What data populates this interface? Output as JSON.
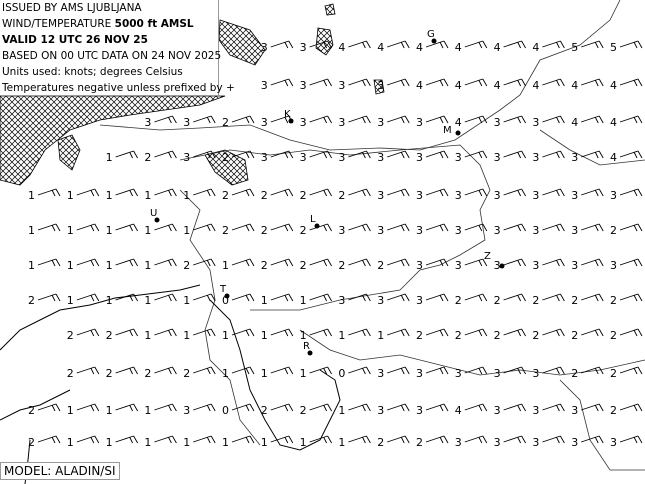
{
  "header": {
    "line1": "ISSUED BY AMS LJUBLJANA",
    "line2_prefix": "WIND/TEMPERATURE ",
    "line2_level": "5000 ft AMSL",
    "valid": "VALID 12 UTC 26 NOV 25",
    "based_on": "BASED ON 00 UTC DATA ON 24 NOV 2025",
    "units": "Units used: knots; degrees Celsius",
    "note": "Temperatures negative unless prefixed by +"
  },
  "model": "MODEL: ALADIN/SI",
  "stations": [
    {
      "label": "G"
    },
    {
      "label": "K"
    },
    {
      "label": "M"
    },
    {
      "label": "U"
    },
    {
      "label": "L"
    },
    {
      "label": "Z"
    },
    {
      "label": "T"
    },
    {
      "label": "R"
    }
  ],
  "temperature_rows": [
    [
      null,
      null,
      null,
      null,
      null,
      null,
      3,
      3,
      4,
      4,
      4,
      4,
      4,
      4,
      5,
      5
    ],
    [
      null,
      null,
      null,
      null,
      null,
      null,
      3,
      3,
      3,
      3,
      4,
      4,
      4,
      4,
      4,
      4
    ],
    [
      null,
      null,
      null,
      3,
      3,
      2,
      3,
      3,
      3,
      3,
      3,
      4,
      3,
      3,
      4,
      4
    ],
    [
      null,
      null,
      1,
      2,
      3,
      2,
      3,
      3,
      3,
      3,
      3,
      3,
      3,
      3,
      3,
      4
    ],
    [
      1,
      1,
      1,
      1,
      1,
      2,
      2,
      2,
      2,
      3,
      3,
      3,
      3,
      3,
      3,
      3
    ],
    [
      1,
      1,
      1,
      1,
      1,
      2,
      2,
      2,
      3,
      3,
      3,
      3,
      3,
      3,
      3,
      2
    ],
    [
      1,
      1,
      1,
      1,
      2,
      1,
      2,
      2,
      2,
      2,
      3,
      3,
      3,
      3,
      3,
      3
    ],
    [
      2,
      1,
      1,
      1,
      1,
      0,
      1,
      1,
      3,
      3,
      3,
      2,
      2,
      2,
      2,
      2
    ],
    [
      null,
      2,
      2,
      1,
      1,
      1,
      1,
      1,
      1,
      1,
      2,
      2,
      2,
      2,
      2,
      2
    ],
    [
      null,
      2,
      2,
      2,
      2,
      1,
      1,
      1,
      0,
      3,
      3,
      3,
      3,
      3,
      2,
      2
    ],
    [
      2,
      1,
      1,
      1,
      3,
      0,
      2,
      2,
      1,
      3,
      3,
      4,
      3,
      3,
      3,
      2
    ],
    [
      2,
      1,
      1,
      1,
      1,
      1,
      1,
      1,
      1,
      2,
      2,
      3,
      3,
      3,
      3,
      3
    ]
  ],
  "colors": {
    "hatch": "#000000",
    "coast": "#000000",
    "border": "#555555"
  }
}
